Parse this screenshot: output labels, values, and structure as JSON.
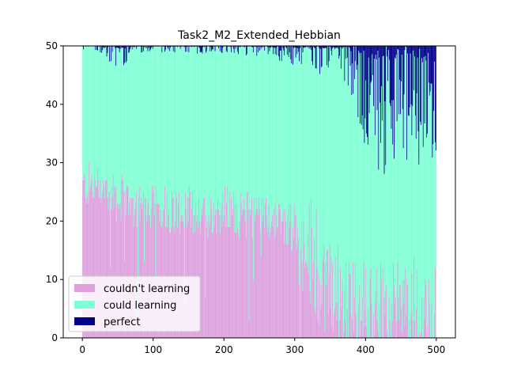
{
  "chart_data": {
    "type": "bar",
    "stacked": true,
    "title": "Task2_M2_Extended_Hebbian",
    "xlabel": "",
    "ylabel": "",
    "xlim": [
      -27,
      527
    ],
    "ylim": [
      0,
      50
    ],
    "xticks": [
      0,
      100,
      200,
      300,
      400,
      500
    ],
    "yticks": [
      0,
      10,
      20,
      30,
      40,
      50
    ],
    "total_per_bar": 50,
    "num_bars": 500,
    "legend": {
      "placement": "lower-left"
    },
    "colors": {
      "couldnt": "#dda0dd",
      "could": "#7fffd4",
      "perfect": "#00008b"
    },
    "series": [
      {
        "name": "couldn't learning",
        "note_values": "keypoints every 25 runs (run index → count); intermediate runs follow the noisy trend",
        "keypoints": [
          [
            0,
            26
          ],
          [
            25,
            26
          ],
          [
            50,
            24
          ],
          [
            75,
            23
          ],
          [
            100,
            23
          ],
          [
            125,
            22
          ],
          [
            150,
            22
          ],
          [
            175,
            21
          ],
          [
            200,
            22
          ],
          [
            225,
            21
          ],
          [
            250,
            21
          ],
          [
            275,
            20
          ],
          [
            300,
            19
          ],
          [
            325,
            14
          ],
          [
            350,
            9
          ],
          [
            375,
            6
          ],
          [
            400,
            3
          ],
          [
            425,
            4
          ],
          [
            450,
            4
          ],
          [
            475,
            4
          ],
          [
            499,
            5
          ]
        ]
      },
      {
        "name": "could learning",
        "note_values": "remainder of 50 after couldn't learning and perfect"
      },
      {
        "name": "perfect",
        "keypoints": [
          [
            0,
            0.3
          ],
          [
            25,
            0.5
          ],
          [
            50,
            2
          ],
          [
            75,
            0.5
          ],
          [
            100,
            0.5
          ],
          [
            150,
            0.6
          ],
          [
            200,
            0.6
          ],
          [
            250,
            0.8
          ],
          [
            300,
            1.5
          ],
          [
            325,
            2.5
          ],
          [
            350,
            1.5
          ],
          [
            375,
            3
          ],
          [
            400,
            8
          ],
          [
            425,
            10
          ],
          [
            450,
            8
          ],
          [
            475,
            10
          ],
          [
            499,
            9
          ]
        ]
      }
    ]
  }
}
